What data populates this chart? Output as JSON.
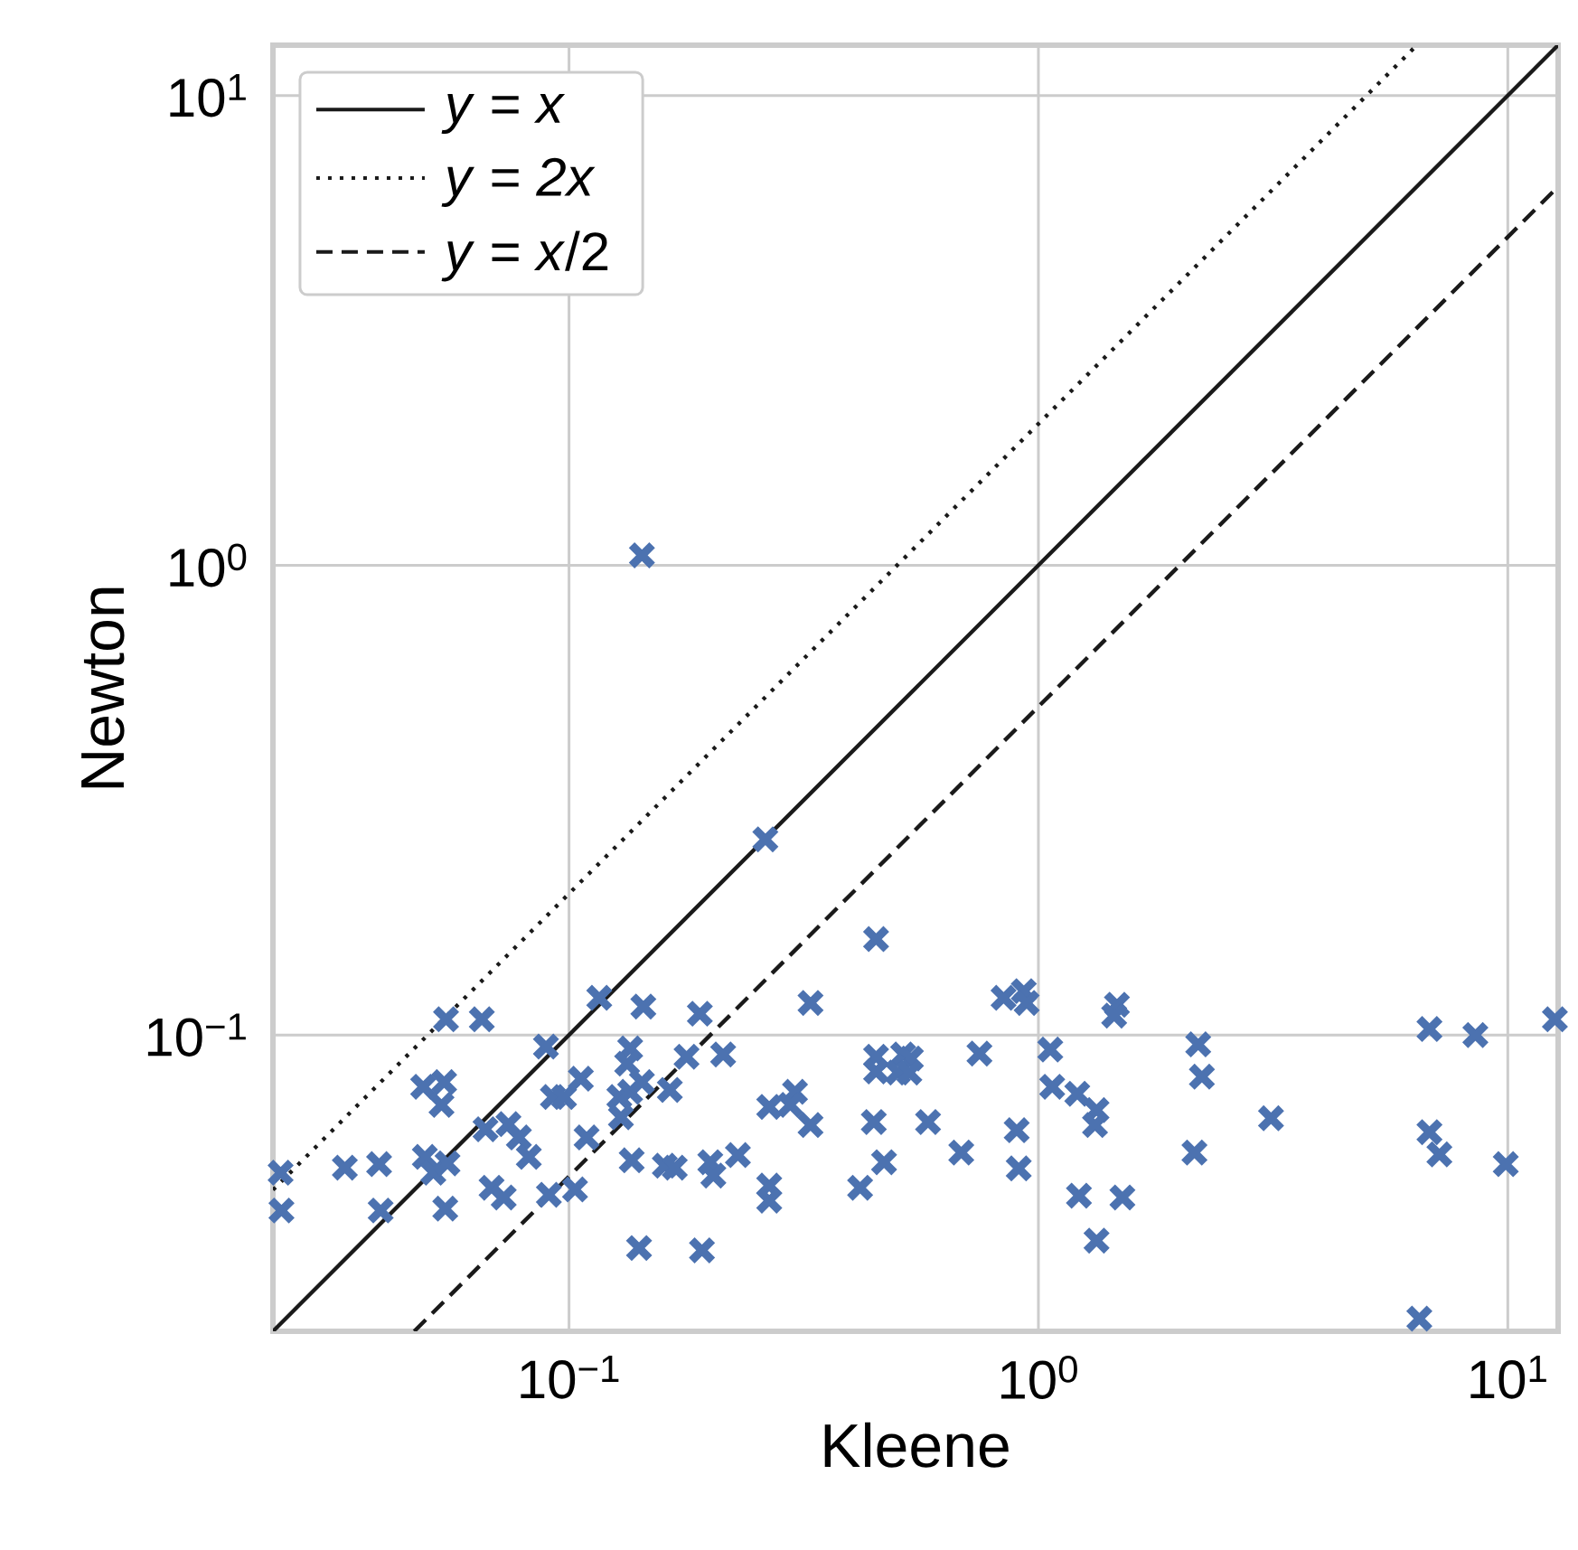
{
  "chart_data": {
    "type": "scatter",
    "xlabel": "Kleene",
    "ylabel": "Newton",
    "log": "xy",
    "grid": true,
    "legend": "top left",
    "xlim": [
      0.0234,
      12.8
    ],
    "ylim": [
      0.0234,
      12.8
    ],
    "xticks": [
      {
        "value": 0.1,
        "label": "10$^{−1}$"
      },
      {
        "value": 1,
        "label": "10$^{0}$"
      },
      {
        "value": 10,
        "label": "10$^{1}$"
      }
    ],
    "yticks": [
      {
        "value": 0.1,
        "label": "10$^{−1}$"
      },
      {
        "value": 1,
        "label": "10$^{0}$"
      },
      {
        "value": 10,
        "label": "10$^{1}$"
      }
    ],
    "series": [
      {
        "color": "#4c72b0",
        "marker": "cross",
        "x": [
          0.0243,
          0.0244,
          0.0333,
          0.0394,
          0.0397,
          0.0489,
          0.0542,
          0.0535,
          0.0493,
          0.0514,
          0.0551,
          0.0545,
          0.0547,
          0.0652,
          0.0664,
          0.0743,
          0.0782,
          0.0821,
          0.0684,
          0.0726,
          0.0893,
          0.0924,
          0.0976,
          0.0906,
          0.103,
          0.106,
          0.109,
          0.116,
          0.144,
          0.135,
          0.133,
          0.128,
          0.135,
          0.143,
          0.129,
          0.136,
          0.141,
          0.16,
          0.168,
          0.164,
          0.178,
          0.19,
          0.213,
          0.192,
          0.2,
          0.203,
          0.229,
          0.143,
          0.262,
          0.267,
          0.303,
          0.296,
          0.327,
          0.327,
          0.267,
          0.267,
          0.451,
          0.451,
          0.451,
          0.446,
          0.469,
          0.417,
          0.515,
          0.535,
          0.502,
          0.531,
          0.582,
          0.685,
          0.749,
          0.843,
          0.931,
          0.944,
          0.899,
          0.908,
          1.06,
          1.07,
          1.21,
          1.33,
          1.32,
          1.22,
          1.51,
          1.33,
          1.47,
          1.45,
          2.19,
          2.23,
          2.15,
          3.13,
          6.81,
          8.53,
          6.81,
          7.15,
          9.9,
          6.48,
          12.6
        ],
        "values": [
          0.0509,
          0.0423,
          0.0522,
          0.0531,
          0.0423,
          0.0776,
          0.0794,
          0.071,
          0.055,
          0.0509,
          0.0533,
          0.0427,
          0.108,
          0.108,
          0.063,
          0.0646,
          0.0605,
          0.055,
          0.0473,
          0.0451,
          0.0945,
          0.0738,
          0.0738,
          0.0457,
          0.0469,
          0.0807,
          0.0605,
          0.12,
          0.115,
          0.0936,
          0.0869,
          0.0738,
          0.0757,
          0.0794,
          0.0668,
          0.0541,
          0.0352,
          0.0527,
          0.0522,
          0.0764,
          0.0899,
          0.111,
          0.0909,
          0.0348,
          0.0536,
          0.0502,
          0.0555,
          1.05,
          0.261,
          0.0703,
          0.0757,
          0.071,
          0.0643,
          0.117,
          0.0478,
          0.0444,
          0.16,
          0.0899,
          0.0836,
          0.0653,
          0.0536,
          0.0473,
          0.0909,
          0.0891,
          0.0832,
          0.0832,
          0.0653,
          0.0562,
          0.0913,
          0.12,
          0.124,
          0.117,
          0.0627,
          0.052,
          0.0931,
          0.0776,
          0.075,
          0.0692,
          0.0643,
          0.0455,
          0.0451,
          0.0365,
          0.116,
          0.11,
          0.0955,
          0.0815,
          0.0562,
          0.0665,
          0.103,
          0.1,
          0.0621,
          0.0557,
          0.0531,
          0.0249,
          0.108
        ]
      },
      {
        "type": "line",
        "name": "*y* = *x*",
        "color": "#1a1a1a",
        "line_style": "solid",
        "x": [
          0.0234,
          12.8
        ],
        "values": [
          0.0234,
          12.8
        ]
      },
      {
        "type": "line",
        "name": "*y* = *2x*",
        "color": "#1a1a1a",
        "line_style": "dotted",
        "x": [
          0.0234,
          6.4
        ],
        "values": [
          0.0468,
          12.8
        ]
      },
      {
        "type": "line",
        "name": "*y* = *x*/2",
        "color": "#1a1a1a",
        "line_style": "dashed",
        "x": [
          0.0468,
          12.8
        ],
        "values": [
          0.0234,
          6.4
        ]
      }
    ]
  }
}
